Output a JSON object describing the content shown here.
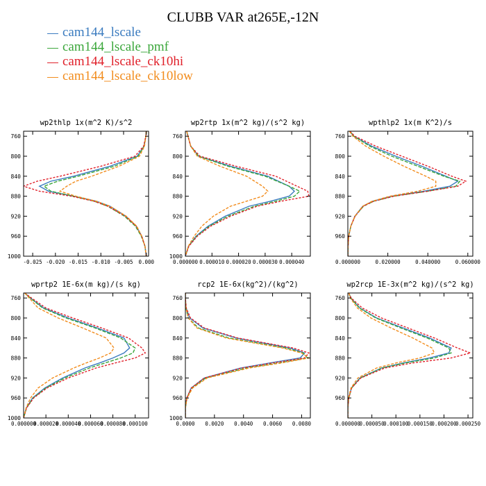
{
  "figure": {
    "title": "CLUBB VAR at265E,-12N"
  },
  "legend": [
    {
      "label": "cam144_lscale",
      "color": "#3a7bbf"
    },
    {
      "label": "cam144_lscale_pmf",
      "color": "#3aa63a"
    },
    {
      "label": "cam144_lscale_ck10hi",
      "color": "#e0202a"
    },
    {
      "label": "cam144_lscale_ck10low",
      "color": "#f28c1c"
    }
  ],
  "chart_data": [
    {
      "type": "line",
      "title": "wp2thlp  1x(m^2 K)/s^2",
      "xlim": [
        -0.027,
        0.0005
      ],
      "ylim": [
        1000,
        750
      ],
      "x_ticks": [
        -0.025,
        -0.02,
        -0.015,
        -0.01,
        -0.005,
        0.0
      ],
      "x_tick_labels": [
        "-0.025",
        "-0.020",
        "-0.015",
        "-0.010",
        "-0.005",
        "0.000"
      ],
      "y_ticks": [
        760,
        800,
        840,
        880,
        920,
        960,
        1000
      ],
      "y": [
        750,
        760,
        780,
        800,
        820,
        840,
        850,
        860,
        870,
        880,
        890,
        900,
        920,
        940,
        960,
        980,
        1000
      ],
      "series": [
        {
          "name": "cam144_lscale",
          "values": [
            0,
            -0.0001,
            -0.0005,
            -0.002,
            -0.008,
            -0.016,
            -0.021,
            -0.0235,
            -0.0215,
            -0.016,
            -0.011,
            -0.008,
            -0.0045,
            -0.0022,
            -0.001,
            -0.0003,
            0
          ]
        },
        {
          "name": "cam144_lscale_pmf",
          "values": [
            0,
            -0.0001,
            -0.0005,
            -0.0018,
            -0.007,
            -0.015,
            -0.0195,
            -0.0225,
            -0.021,
            -0.016,
            -0.0115,
            -0.0085,
            -0.0048,
            -0.0024,
            -0.0011,
            -0.0003,
            0
          ]
        },
        {
          "name": "cam144_lscale_ck10hi",
          "values": [
            0,
            -0.0001,
            -0.0006,
            -0.0025,
            -0.01,
            -0.019,
            -0.024,
            -0.027,
            -0.0235,
            -0.0165,
            -0.0115,
            -0.0085,
            -0.0046,
            -0.0022,
            -0.001,
            -0.0003,
            0
          ]
        },
        {
          "name": "cam144_lscale_ck10low",
          "values": [
            0,
            -0.0001,
            -0.0004,
            -0.0015,
            -0.006,
            -0.012,
            -0.0155,
            -0.0175,
            -0.019,
            -0.0155,
            -0.011,
            -0.008,
            -0.0044,
            -0.0021,
            -0.001,
            -0.0003,
            0
          ]
        }
      ]
    },
    {
      "type": "line",
      "title": "wp2rtp  1x(m^2 kg)/(s^2 kg)",
      "xlim": [
        0,
        4.7e-05
      ],
      "ylim": [
        1000,
        750
      ],
      "x_ticks": [
        0,
        1e-05,
        2e-05,
        3e-05,
        4e-05
      ],
      "x_tick_labels": [
        "0.000000",
        "0.000010",
        "0.000020",
        "0.000030",
        "0.000040"
      ],
      "y_ticks": [
        760,
        800,
        840,
        880,
        920,
        960,
        1000
      ],
      "y": [
        750,
        760,
        780,
        800,
        820,
        840,
        860,
        870,
        880,
        890,
        900,
        920,
        940,
        960,
        980,
        1000
      ],
      "series": [
        {
          "name": "cam144_lscale",
          "values": [
            5e-07,
            1e-06,
            2e-06,
            5e-06,
            1.7e-05,
            3.1e-05,
            3.9e-05,
            4.1e-05,
            3.9e-05,
            3.2e-05,
            2.4e-05,
            1.5e-05,
            8.5e-06,
            4e-06,
            1.2e-06,
            0
          ]
        },
        {
          "name": "cam144_lscale_pmf",
          "values": [
            5e-07,
            1e-06,
            2e-06,
            5e-06,
            1.6e-05,
            3e-05,
            3.9e-05,
            4.3e-05,
            4.1e-05,
            3.4e-05,
            2.6e-05,
            1.6e-05,
            9e-06,
            4.2e-06,
            1.2e-06,
            0
          ]
        },
        {
          "name": "cam144_lscale_ck10hi",
          "values": [
            5e-07,
            1e-06,
            2e-06,
            5.5e-06,
            1.9e-05,
            3.4e-05,
            4.2e-05,
            4.6e-05,
            4.65e-05,
            3.6e-05,
            2.7e-05,
            1.7e-05,
            9.5e-06,
            4.5e-06,
            1.3e-06,
            0
          ]
        },
        {
          "name": "cam144_lscale_ck10low",
          "values": [
            5e-07,
            1e-06,
            2e-06,
            4.5e-06,
            1.3e-05,
            2.3e-05,
            2.9e-05,
            3.1e-05,
            2.9e-05,
            2.3e-05,
            1.7e-05,
            1.05e-05,
            6.2e-06,
            3.3e-06,
            1.1e-06,
            0
          ]
        }
      ]
    },
    {
      "type": "line",
      "title": "wpthlp2  1x(m K^2)/s",
      "xlim": [
        0,
        0.0625
      ],
      "ylim": [
        1000,
        750
      ],
      "x_ticks": [
        0,
        0.02,
        0.04,
        0.06
      ],
      "x_tick_labels": [
        "0.000000",
        "0.020000",
        "0.040000",
        "0.060000"
      ],
      "y_ticks": [
        760,
        800,
        840,
        880,
        920,
        960
      ],
      "y": [
        750,
        760,
        780,
        800,
        820,
        840,
        850,
        860,
        870,
        880,
        890,
        900,
        920,
        940,
        960,
        980,
        1000
      ],
      "series": [
        {
          "name": "cam144_lscale",
          "values": [
            0.001,
            0.003,
            0.012,
            0.024,
            0.037,
            0.049,
            0.055,
            0.051,
            0.038,
            0.022,
            0.0125,
            0.0075,
            0.0035,
            0.0015,
            0.0004,
            0.0001,
            0
          ]
        },
        {
          "name": "cam144_lscale_pmf",
          "values": [
            0.001,
            0.003,
            0.011,
            0.022,
            0.035,
            0.048,
            0.056,
            0.054,
            0.04,
            0.023,
            0.013,
            0.0078,
            0.0036,
            0.0015,
            0.0004,
            0.0001,
            0
          ]
        },
        {
          "name": "cam144_lscale_ck10hi",
          "values": [
            0.001,
            0.0035,
            0.014,
            0.027,
            0.04,
            0.052,
            0.059,
            0.055,
            0.04,
            0.023,
            0.013,
            0.0077,
            0.0036,
            0.0015,
            0.0004,
            0.0001,
            0
          ]
        },
        {
          "name": "cam144_lscale_ck10low",
          "values": [
            0.0008,
            0.0025,
            0.009,
            0.018,
            0.028,
            0.039,
            0.044,
            0.044,
            0.035,
            0.021,
            0.0122,
            0.0074,
            0.0035,
            0.0015,
            0.0004,
            0.0001,
            0
          ]
        }
      ]
    },
    {
      "type": "line",
      "title": "wprtp2  1E-6x(m kg)/(s kg)",
      "xlim": [
        0,
        0.000112
      ],
      "ylim": [
        1000,
        750
      ],
      "x_ticks": [
        0,
        2e-05,
        4e-05,
        6e-05,
        8e-05,
        0.0001
      ],
      "x_tick_labels": [
        "0.000000",
        "0.000020",
        "0.000040",
        "0.000060",
        "0.000080",
        "0.000100"
      ],
      "y_ticks": [
        760,
        800,
        840,
        880,
        920,
        960,
        1000
      ],
      "y": [
        750,
        760,
        780,
        800,
        820,
        840,
        860,
        870,
        880,
        890,
        900,
        920,
        940,
        960,
        980,
        1000
      ],
      "series": [
        {
          "name": "cam144_lscale",
          "values": [
            1e-06,
            6e-06,
            1.8e-05,
            4e-05,
            6.6e-05,
            9e-05,
            9.5e-05,
            9e-05,
            8e-05,
            6.8e-05,
            5.5e-05,
            3.5e-05,
            1.9e-05,
            8e-06,
            2.5e-06,
            0
          ]
        },
        {
          "name": "cam144_lscale_pmf",
          "values": [
            1e-06,
            6e-06,
            1.7e-05,
            3.8e-05,
            6.4e-05,
            8.7e-05,
            0.0001,
            9.8e-05,
            8.7e-05,
            7.3e-05,
            5.9e-05,
            3.7e-05,
            2e-05,
            8.5e-06,
            2.6e-06,
            0
          ]
        },
        {
          "name": "cam144_lscale_ck10hi",
          "values": [
            1e-06,
            7e-06,
            2e-05,
            4.4e-05,
            7e-05,
            9.4e-05,
            0.000106,
            0.000109,
            0.0001,
            8.2e-05,
            6.5e-05,
            4e-05,
            2.1e-05,
            9e-06,
            2.7e-06,
            0
          ]
        },
        {
          "name": "cam144_lscale_ck10low",
          "values": [
            1e-06,
            5e-06,
            1.3e-05,
            3.1e-05,
            5.3e-05,
            7.4e-05,
            8.1e-05,
            7.8e-05,
            6.8e-05,
            5.6e-05,
            4.5e-05,
            2.6e-05,
            1.3e-05,
            6.2e-06,
            2.2e-06,
            0
          ]
        }
      ]
    },
    {
      "type": "line",
      "title": "rcp2  1E-6x(kg^2)/(kg^2)",
      "xlim": [
        0,
        0.0086
      ],
      "ylim": [
        1000,
        750
      ],
      "x_ticks": [
        0,
        0.002,
        0.004,
        0.006,
        0.008
      ],
      "x_tick_labels": [
        "0.0000",
        "0.0020",
        "0.0040",
        "0.0060",
        "0.0080"
      ],
      "y_ticks": [
        760,
        800,
        840,
        880,
        920,
        960,
        1000
      ],
      "y": [
        750,
        760,
        780,
        800,
        820,
        840,
        860,
        870,
        880,
        890,
        900,
        920,
        940,
        960,
        980,
        1000
      ],
      "series": [
        {
          "name": "cam144_lscale",
          "values": [
            0,
            0,
            5e-05,
            0.0003,
            0.0012,
            0.0035,
            0.0072,
            0.0082,
            0.0079,
            0.0058,
            0.0038,
            0.0013,
            0.0004,
            0.0001,
            0,
            0
          ]
        },
        {
          "name": "cam144_lscale_pmf",
          "values": [
            0,
            0,
            4e-05,
            0.0002,
            0.0009,
            0.003,
            0.0069,
            0.0081,
            0.0084,
            0.0064,
            0.0042,
            0.0014,
            0.00045,
            0.0001,
            0,
            0
          ]
        },
        {
          "name": "cam144_lscale_ck10hi",
          "values": [
            0,
            0,
            6e-05,
            0.00035,
            0.0013,
            0.0036,
            0.0074,
            0.0085,
            0.0082,
            0.006,
            0.0039,
            0.0013,
            0.0004,
            0.0001,
            0,
            0
          ]
        },
        {
          "name": "cam144_lscale_ck10low",
          "values": [
            0,
            0,
            4e-05,
            0.0002,
            0.0008,
            0.0028,
            0.0067,
            0.008,
            0.0085,
            0.0066,
            0.0044,
            0.0015,
            0.0005,
            0.00012,
            0,
            0
          ]
        }
      ]
    },
    {
      "type": "line",
      "title": "wp2rcp  1E-3x(m^2 kg)/(s^2 kg)",
      "xlim": [
        0,
        0.00026
      ],
      "ylim": [
        1000,
        750
      ],
      "x_ticks": [
        0,
        5e-05,
        0.0001,
        0.00015,
        0.0002,
        0.00025
      ],
      "x_tick_labels": [
        "0.000000",
        "0.000050",
        "0.000100",
        "0.000150",
        "0.000200",
        "0.000250"
      ],
      "y_ticks": [
        760,
        800,
        840,
        880,
        920,
        960
      ],
      "y": [
        750,
        760,
        780,
        800,
        820,
        840,
        860,
        870,
        880,
        890,
        900,
        920,
        940,
        960,
        980,
        1000
      ],
      "series": [
        {
          "name": "cam144_lscale",
          "values": [
            2e-06,
            6e-06,
            2.5e-05,
            6e-05,
            0.000115,
            0.00017,
            0.000215,
            0.00021,
            0.00017,
            0.000115,
            7e-05,
            2.5e-05,
            7.5e-06,
            2e-06,
            0,
            0
          ]
        },
        {
          "name": "cam144_lscale_pmf",
          "values": [
            2e-06,
            6e-06,
            2.4e-05,
            5.8e-05,
            0.00011,
            0.000165,
            0.00021,
            0.000215,
            0.00018,
            0.00012,
            7.2e-05,
            2.6e-05,
            8e-06,
            2e-06,
            0,
            0
          ]
        },
        {
          "name": "cam144_lscale_ck10hi",
          "values": [
            2e-06,
            7e-06,
            3e-05,
            7e-05,
            0.000125,
            0.00018,
            0.000228,
            0.000255,
            0.000215,
            0.000135,
            7.7e-05,
            2.7e-05,
            8e-06,
            2e-06,
            0,
            0
          ]
        },
        {
          "name": "cam144_lscale_ck10low",
          "values": [
            2e-06,
            5e-06,
            2e-05,
            4.8e-05,
            9e-05,
            0.000135,
            0.000175,
            0.00018,
            0.00015,
            0.0001,
            6e-05,
            2.1e-05,
            6.5e-06,
            1.5e-06,
            0,
            0
          ]
        }
      ]
    }
  ]
}
